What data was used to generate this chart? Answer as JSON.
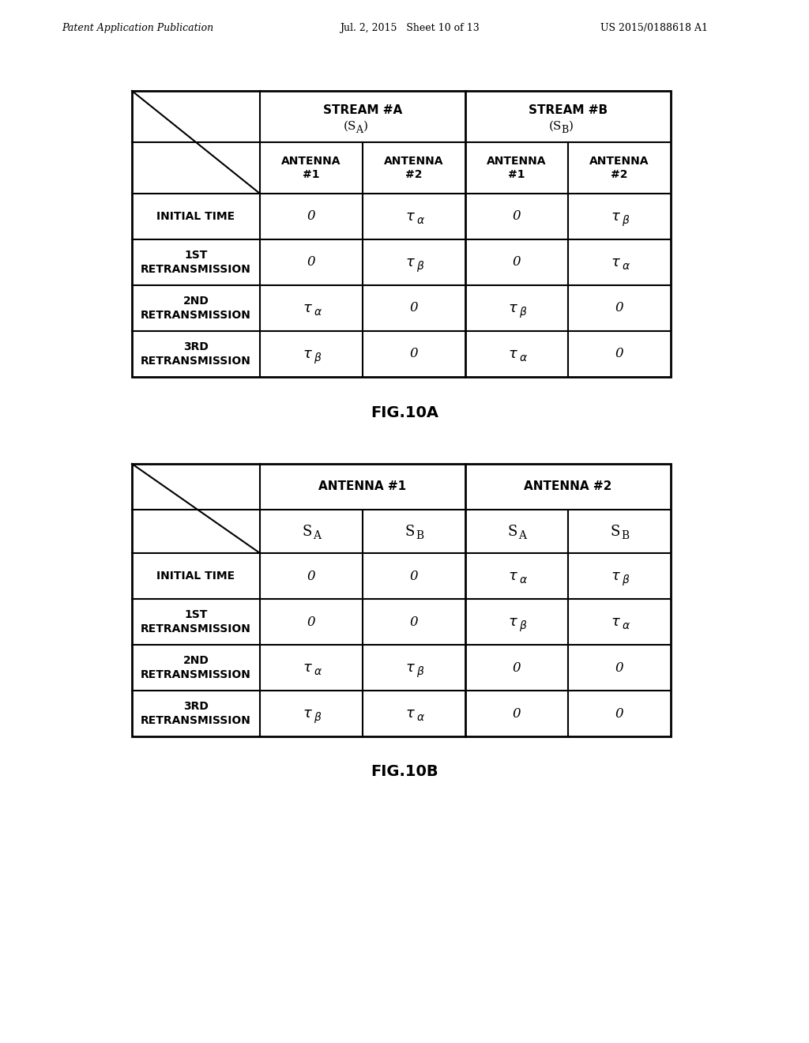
{
  "header_text_left": "Patent Application Publication",
  "header_text_mid": "Jul. 2, 2015   Sheet 10 of 13",
  "header_text_right": "US 2015/0188618 A1",
  "fig10a_caption": "FIG.10A",
  "fig10b_caption": "FIG.10B",
  "background_color": "#ffffff",
  "text_color": "#000000",
  "table_a": {
    "row_headers": [
      "INITIAL TIME",
      "1ST\nRETRANSMISSION",
      "2ND\nRETRANSMISSION",
      "3RD\nRETRANSMISSION"
    ],
    "cells": [
      [
        "0",
        "tau_alpha",
        "0",
        "tau_beta"
      ],
      [
        "0",
        "tau_beta",
        "0",
        "tau_alpha"
      ],
      [
        "tau_alpha",
        "0",
        "tau_beta",
        "0"
      ],
      [
        "tau_beta",
        "0",
        "tau_alpha",
        "0"
      ]
    ]
  },
  "table_b": {
    "row_headers": [
      "INITIAL TIME",
      "1ST\nRETRANSMISSION",
      "2ND\nRETRANSMISSION",
      "3RD\nRETRANSMISSION"
    ],
    "cells": [
      [
        "0",
        "0",
        "tau_alpha",
        "tau_beta"
      ],
      [
        "0",
        "0",
        "tau_beta",
        "tau_alpha"
      ],
      [
        "tau_alpha",
        "tau_beta",
        "0",
        "0"
      ],
      [
        "tau_beta",
        "tau_alpha",
        "0",
        "0"
      ]
    ]
  }
}
